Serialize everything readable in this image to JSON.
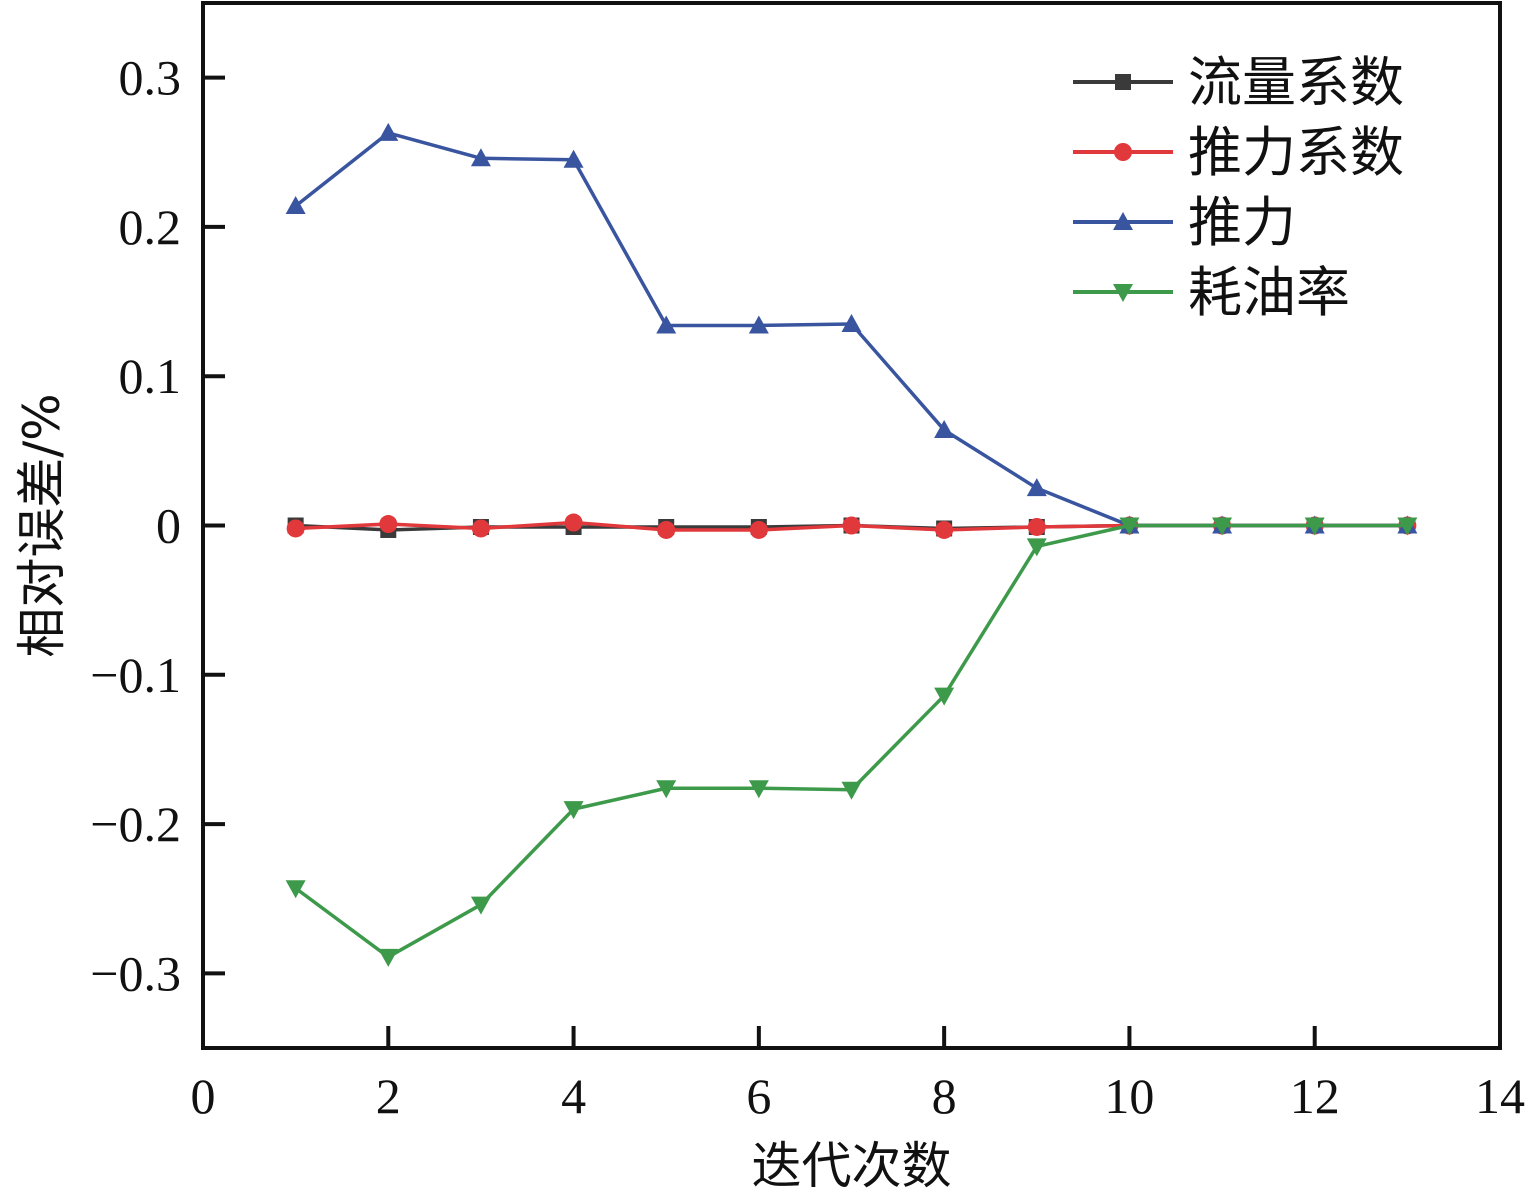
{
  "chart_data": {
    "type": "line",
    "title": "",
    "xlabel": "迭代次数",
    "ylabel": "相对误差/%",
    "xlim": [
      0,
      14
    ],
    "ylim": [
      -0.35,
      0.35
    ],
    "x_ticks": [
      0,
      2,
      4,
      6,
      8,
      10,
      12,
      14
    ],
    "y_ticks": [
      -0.3,
      -0.2,
      -0.1,
      0,
      0.1,
      0.2,
      0.3
    ],
    "x_tick_labels": [
      "0",
      "2",
      "4",
      "6",
      "8",
      "10",
      "12",
      "14"
    ],
    "y_tick_labels": [
      "−0.3",
      "−0.2",
      "−0.1",
      "0",
      "0.1",
      "0.2",
      "0.3"
    ],
    "grid": false,
    "legend_position": "top-right",
    "x": [
      1,
      2,
      3,
      4,
      5,
      6,
      7,
      8,
      9,
      10,
      11,
      12,
      13
    ],
    "series": [
      {
        "name": "流量系数",
        "color": "#3a3a3a",
        "marker": "square",
        "values": [
          0.0,
          -0.003,
          -0.001,
          -0.001,
          -0.001,
          -0.001,
          0.0,
          -0.002,
          -0.001,
          0.0,
          0.0,
          0.0,
          0.0
        ]
      },
      {
        "name": "推力系数",
        "color": "#e0383b",
        "marker": "circle",
        "values": [
          -0.002,
          0.001,
          -0.002,
          0.002,
          -0.003,
          -0.003,
          0.0,
          -0.003,
          -0.001,
          0.0,
          0.0,
          0.0,
          0.0
        ]
      },
      {
        "name": "推力",
        "color": "#3a559f",
        "marker": "triangle-up",
        "values": [
          0.214,
          0.263,
          0.246,
          0.245,
          0.134,
          0.134,
          0.135,
          0.064,
          0.025,
          0.0,
          0.0,
          0.0,
          0.0
        ]
      },
      {
        "name": "耗油率",
        "color": "#3e9a4b",
        "marker": "triangle-down",
        "values": [
          -0.243,
          -0.289,
          -0.254,
          -0.19,
          -0.176,
          -0.176,
          -0.177,
          -0.114,
          -0.014,
          0.0,
          0.0,
          0.0,
          0.0
        ]
      }
    ]
  }
}
